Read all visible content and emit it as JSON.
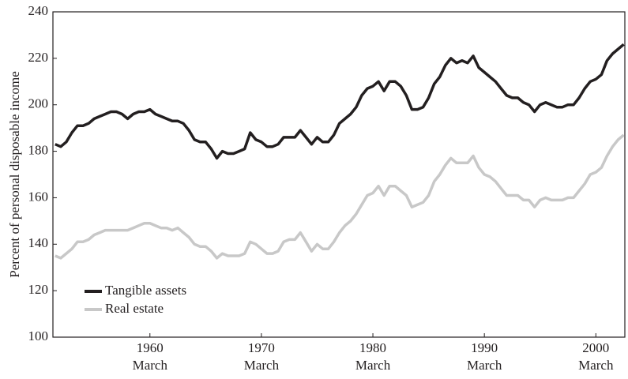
{
  "chart_data": {
    "type": "line",
    "y_label": "Percent of personal disposable income",
    "x": [
      1951.5,
      1952,
      1952.5,
      1953,
      1953.5,
      1954,
      1954.5,
      1955,
      1955.5,
      1956,
      1956.5,
      1957,
      1957.5,
      1958,
      1958.5,
      1959,
      1959.5,
      1960,
      1960.5,
      1961,
      1961.5,
      1962,
      1962.5,
      1963,
      1963.5,
      1964,
      1964.5,
      1965,
      1965.5,
      1966,
      1966.5,
      1967,
      1967.5,
      1968,
      1968.5,
      1969,
      1969.5,
      1970,
      1970.5,
      1971,
      1971.5,
      1972,
      1972.5,
      1973,
      1973.5,
      1974,
      1974.5,
      1975,
      1975.5,
      1976,
      1976.5,
      1977,
      1977.5,
      1978,
      1978.5,
      1979,
      1979.5,
      1980,
      1980.5,
      1981,
      1981.5,
      1982,
      1982.5,
      1983,
      1983.5,
      1984,
      1984.5,
      1985,
      1985.5,
      1986,
      1986.5,
      1987,
      1987.5,
      1988,
      1988.5,
      1989,
      1989.5,
      1990,
      1990.5,
      1991,
      1991.5,
      1992,
      1992.5,
      1993,
      1993.5,
      1994,
      1994.5,
      1995,
      1995.5,
      1996,
      1996.5,
      1997,
      1997.5,
      1998,
      1998.5,
      1999,
      1999.5,
      2000,
      2000.5,
      2001,
      2001.5,
      2002,
      2002.5
    ],
    "series": [
      {
        "name": "Tangible assets",
        "color": "#231f20",
        "values": [
          183,
          182,
          184,
          188,
          191,
          191,
          192,
          194,
          195,
          196,
          197,
          197,
          196,
          194,
          196,
          197,
          197,
          198,
          196,
          195,
          194,
          193,
          193,
          192,
          189,
          185,
          184,
          184,
          181,
          177,
          180,
          179,
          179,
          180,
          181,
          188,
          185,
          184,
          182,
          182,
          183,
          186,
          186,
          186,
          189,
          186,
          183,
          186,
          184,
          184,
          187,
          192,
          194,
          196,
          199,
          204,
          207,
          208,
          210,
          206,
          210,
          210,
          208,
          204,
          198,
          198,
          199,
          203,
          209,
          212,
          217,
          220,
          218,
          219,
          218,
          221,
          216,
          214,
          212,
          210,
          207,
          204,
          203,
          203,
          201,
          200,
          197,
          200,
          201,
          200,
          199,
          199,
          200,
          200,
          203,
          207,
          210,
          211,
          213,
          219,
          222,
          224,
          226
        ]
      },
      {
        "name": "Real estate",
        "color": "#c8c8c8",
        "values": [
          135,
          134,
          136,
          138,
          141,
          141,
          142,
          144,
          145,
          146,
          146,
          146,
          146,
          146,
          147,
          148,
          149,
          149,
          148,
          147,
          147,
          146,
          147,
          145,
          143,
          140,
          139,
          139,
          137,
          134,
          136,
          135,
          135,
          135,
          136,
          141,
          140,
          138,
          136,
          136,
          137,
          141,
          142,
          142,
          145,
          141,
          137,
          140,
          138,
          138,
          141,
          145,
          148,
          150,
          153,
          157,
          161,
          162,
          165,
          161,
          165,
          165,
          163,
          161,
          156,
          157,
          158,
          161,
          167,
          170,
          174,
          177,
          175,
          175,
          175,
          178,
          173,
          170,
          169,
          167,
          164,
          161,
          161,
          161,
          159,
          159,
          156,
          159,
          160,
          159,
          159,
          159,
          160,
          160,
          163,
          166,
          170,
          171,
          173,
          178,
          182,
          185,
          187
        ]
      }
    ],
    "xlim": [
      1951.3,
      2002.6
    ],
    "xticks": [
      {
        "value": 1960,
        "label": "1960",
        "sublabel": "March"
      },
      {
        "value": 1970,
        "label": "1970",
        "sublabel": "March"
      },
      {
        "value": 1980,
        "label": "1980",
        "sublabel": "March"
      },
      {
        "value": 1990,
        "label": "1990",
        "sublabel": "March"
      },
      {
        "value": 2000,
        "label": "2000",
        "sublabel": "March"
      }
    ],
    "ylim": [
      100,
      240
    ],
    "yticks": [
      100,
      120,
      140,
      160,
      180,
      200,
      220,
      240
    ],
    "legend": "lower left"
  }
}
